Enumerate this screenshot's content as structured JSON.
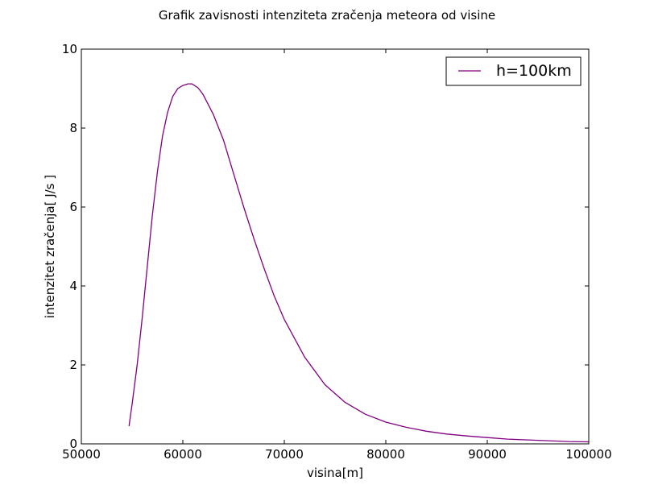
{
  "chart_data": {
    "type": "line",
    "title": "Grafik zavisnosti intenziteta zračenja meteora od visine",
    "xlabel": "visina[m]",
    "ylabel": "intenzitet zračenja[ J/s ]",
    "xlim": [
      50000,
      100000
    ],
    "ylim": [
      0,
      10
    ],
    "xticks": [
      50000,
      60000,
      70000,
      80000,
      90000,
      100000
    ],
    "yticks": [
      0,
      2,
      4,
      6,
      8,
      10
    ],
    "x_tick_labels": [
      "50000",
      "60000",
      "70000",
      "80000",
      "90000",
      "100000"
    ],
    "y_tick_labels": [
      "0",
      "2",
      "4",
      "6",
      "8",
      "10"
    ],
    "grid": false,
    "legend": {
      "placement": "top-right"
    },
    "series": [
      {
        "name": "h=100km",
        "color": "#800080",
        "x": [
          54700,
          55000,
          55500,
          56000,
          56500,
          57000,
          57500,
          58000,
          58500,
          59000,
          59500,
          60000,
          60500,
          60900,
          61500,
          62000,
          63000,
          64000,
          65000,
          66000,
          67000,
          68000,
          69000,
          70000,
          72000,
          74000,
          76000,
          78000,
          80000,
          82000,
          84000,
          86000,
          88000,
          90000,
          92000,
          94000,
          96000,
          98000,
          100000
        ],
        "y": [
          0.45,
          1.0,
          2.0,
          3.2,
          4.5,
          5.8,
          6.9,
          7.8,
          8.4,
          8.8,
          9.0,
          9.08,
          9.12,
          9.12,
          9.02,
          8.85,
          8.35,
          7.7,
          6.85,
          6.0,
          5.2,
          4.45,
          3.75,
          3.15,
          2.2,
          1.5,
          1.05,
          0.75,
          0.55,
          0.42,
          0.32,
          0.25,
          0.2,
          0.16,
          0.12,
          0.1,
          0.08,
          0.06,
          0.05
        ]
      }
    ]
  }
}
